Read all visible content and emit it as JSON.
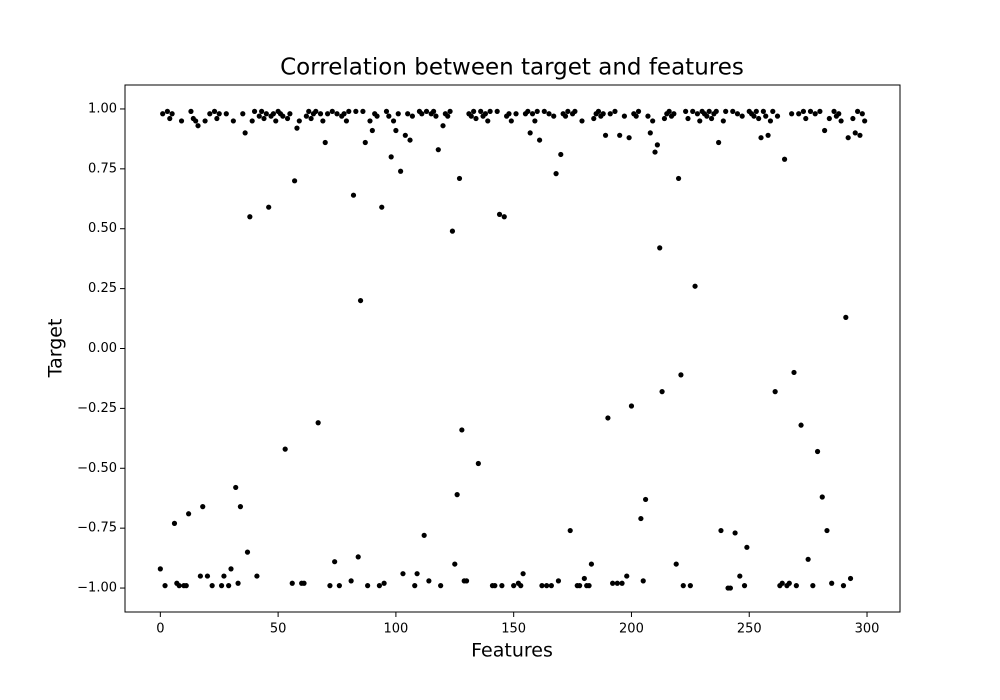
{
  "chart_data": {
    "type": "scatter",
    "title": "Correlation between target and features",
    "x_label": "Features",
    "y_label": "Target",
    "color": "#000000",
    "xlim": [
      -15,
      314
    ],
    "ylim": [
      -1.1,
      1.1
    ],
    "xticks": [
      0,
      50,
      100,
      150,
      200,
      250,
      300
    ],
    "yticks": [
      {
        "value": -1,
        "label": "−1.00"
      },
      {
        "value": -0.75,
        "label": "−0.75"
      },
      {
        "value": -0.5,
        "label": "−0.50"
      },
      {
        "value": -0.25,
        "label": "−0.25"
      },
      {
        "value": 0,
        "label": "0.00"
      },
      {
        "value": 0.25,
        "label": "0.25"
      },
      {
        "value": 0.5,
        "label": "0.50"
      },
      {
        "value": 0.75,
        "label": "0.75"
      },
      {
        "value": 1,
        "label": "1.00"
      }
    ],
    "x": [
      0,
      1,
      2,
      3,
      4,
      5,
      6,
      7,
      8,
      9,
      10,
      11,
      12,
      13,
      14,
      15,
      16,
      17,
      18,
      19,
      20,
      21,
      22,
      23,
      24,
      25,
      26,
      27,
      28,
      29,
      30,
      31,
      32,
      33,
      34,
      35,
      36,
      37,
      38,
      39,
      40,
      41,
      42,
      43,
      44,
      45,
      46,
      47,
      48,
      49,
      50,
      51,
      52,
      53,
      54,
      55,
      56,
      57,
      58,
      59,
      60,
      61,
      62,
      63,
      64,
      65,
      66,
      67,
      68,
      69,
      70,
      71,
      72,
      73,
      74,
      75,
      76,
      77,
      78,
      79,
      80,
      81,
      82,
      83,
      84,
      85,
      86,
      87,
      88,
      89,
      90,
      91,
      92,
      93,
      94,
      95,
      96,
      97,
      98,
      99,
      100,
      101,
      102,
      103,
      104,
      105,
      106,
      107,
      108,
      109,
      110,
      111,
      112,
      113,
      114,
      115,
      116,
      117,
      118,
      119,
      120,
      121,
      122,
      123,
      124,
      125,
      126,
      127,
      128,
      129,
      130,
      131,
      132,
      133,
      134,
      135,
      136,
      137,
      138,
      139,
      140,
      141,
      142,
      143,
      144,
      145,
      146,
      147,
      148,
      149,
      150,
      151,
      152,
      153,
      154,
      155,
      156,
      157,
      158,
      159,
      160,
      161,
      162,
      163,
      164,
      165,
      166,
      167,
      168,
      169,
      170,
      171,
      172,
      173,
      174,
      175,
      176,
      177,
      178,
      179,
      180,
      181,
      182,
      183,
      184,
      185,
      186,
      187,
      188,
      189,
      190,
      191,
      192,
      193,
      194,
      195,
      196,
      197,
      198,
      199,
      200,
      201,
      202,
      203,
      204,
      205,
      206,
      207,
      208,
      209,
      210,
      211,
      212,
      213,
      214,
      215,
      216,
      217,
      218,
      219,
      220,
      221,
      222,
      223,
      224,
      225,
      226,
      227,
      228,
      229,
      230,
      231,
      232,
      233,
      234,
      235,
      236,
      237,
      238,
      239,
      240,
      241,
      242,
      243,
      244,
      245,
      246,
      247,
      248,
      249,
      250,
      251,
      252,
      253,
      254,
      255,
      256,
      257,
      258,
      259,
      260,
      261,
      262,
      263,
      264,
      265,
      266,
      267,
      268,
      269,
      270,
      271,
      272,
      273,
      274,
      275,
      276,
      277,
      278,
      279,
      280,
      281,
      282,
      283,
      284,
      285,
      286,
      287,
      288,
      289,
      290,
      291,
      292,
      293,
      294,
      295,
      296,
      297,
      298,
      299
    ],
    "values": [
      -0.92,
      0.98,
      -0.99,
      0.99,
      0.96,
      0.98,
      -0.73,
      -0.98,
      -0.99,
      0.95,
      -0.99,
      -0.99,
      -0.69,
      0.99,
      0.96,
      0.95,
      0.93,
      -0.95,
      -0.66,
      0.95,
      -0.95,
      0.98,
      -0.99,
      0.99,
      0.96,
      0.98,
      -0.99,
      -0.95,
      0.98,
      -0.99,
      -0.92,
      0.95,
      -0.58,
      -0.98,
      -0.66,
      0.98,
      0.9,
      -0.85,
      0.55,
      0.95,
      0.99,
      -0.95,
      0.97,
      0.99,
      0.96,
      0.98,
      0.59,
      0.97,
      0.98,
      0.95,
      0.99,
      0.98,
      0.97,
      -0.42,
      0.96,
      0.98,
      -0.98,
      0.7,
      0.92,
      0.95,
      -0.98,
      -0.98,
      0.97,
      0.99,
      0.96,
      0.98,
      0.99,
      -0.31,
      0.98,
      0.95,
      0.86,
      0.98,
      -0.99,
      0.99,
      -0.89,
      0.98,
      -0.99,
      0.97,
      0.98,
      0.95,
      0.99,
      -0.97,
      0.64,
      0.99,
      -0.87,
      0.2,
      0.99,
      0.86,
      -0.99,
      0.95,
      0.91,
      0.98,
      0.97,
      -0.99,
      0.59,
      -0.98,
      0.99,
      0.97,
      0.8,
      0.95,
      0.91,
      0.98,
      0.74,
      -0.94,
      0.89,
      0.98,
      0.87,
      0.97,
      -0.99,
      -0.94,
      0.99,
      0.98,
      -0.78,
      0.99,
      -0.97,
      0.98,
      0.99,
      0.97,
      0.83,
      -0.99,
      0.93,
      0.98,
      0.97,
      0.99,
      0.49,
      -0.9,
      -0.61,
      0.71,
      -0.34,
      -0.97,
      -0.97,
      0.98,
      0.97,
      0.99,
      0.96,
      -0.48,
      0.99,
      0.97,
      0.98,
      0.95,
      0.99,
      -0.99,
      -0.99,
      0.99,
      0.56,
      -0.99,
      0.55,
      0.97,
      0.98,
      0.95,
      -0.99,
      0.98,
      -0.98,
      -0.99,
      -0.94,
      0.98,
      0.99,
      0.9,
      0.98,
      0.95,
      0.99,
      0.87,
      -0.99,
      0.99,
      -0.99,
      0.98,
      -0.99,
      0.97,
      0.73,
      -0.97,
      0.81,
      0.98,
      0.97,
      0.99,
      -0.76,
      0.98,
      0.99,
      -0.99,
      -0.99,
      0.95,
      -0.96,
      -0.99,
      -0.99,
      -0.9,
      0.96,
      0.98,
      0.99,
      0.97,
      0.98,
      0.89,
      -0.29,
      0.98,
      -0.98,
      0.99,
      -0.98,
      0.89,
      -0.98,
      0.97,
      -0.95,
      0.88,
      -0.24,
      0.98,
      0.97,
      0.99,
      -0.71,
      -0.97,
      -0.63,
      0.97,
      0.9,
      0.95,
      0.82,
      0.85,
      0.42,
      -0.18,
      0.96,
      0.98,
      0.99,
      0.97,
      0.98,
      -0.9,
      0.71,
      -0.11,
      -0.99,
      0.99,
      0.96,
      -0.99,
      0.99,
      0.26,
      0.98,
      0.95,
      0.99,
      0.98,
      0.97,
      0.99,
      0.96,
      0.98,
      0.99,
      0.86,
      -0.76,
      0.95,
      0.99,
      -1.0,
      -1.0,
      0.99,
      -0.77,
      0.98,
      -0.95,
      0.97,
      -0.99,
      -0.83,
      0.99,
      0.98,
      0.97,
      0.99,
      0.96,
      0.88,
      0.99,
      0.97,
      0.89,
      0.95,
      0.99,
      -0.18,
      0.97,
      -0.99,
      -0.98,
      0.79,
      -0.99,
      -0.98,
      0.98,
      -0.1,
      -0.99,
      0.98,
      -0.32,
      0.99,
      0.96,
      -0.88,
      0.99,
      -0.99,
      0.98,
      -0.43,
      0.99,
      -0.62,
      0.91,
      -0.76,
      0.96,
      -0.98,
      0.99,
      0.97,
      0.98,
      0.95,
      -0.99,
      0.13,
      0.88,
      -0.96,
      0.96,
      0.9,
      0.99,
      0.89,
      0.98,
      0.95
    ]
  }
}
